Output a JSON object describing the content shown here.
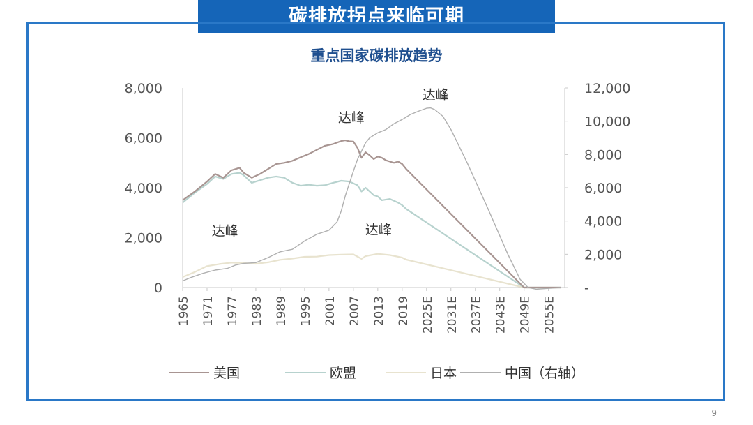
{
  "header": {
    "banner_title": "碳排放拐点来临可期",
    "page_number": "9"
  },
  "chart_data": {
    "type": "line",
    "title": "重点国家碳排放趋势",
    "left_axis": {
      "ticks": [
        "0",
        "2,000",
        "4,000",
        "6,000",
        "8,000"
      ],
      "min": 0,
      "max": 8000
    },
    "right_axis": {
      "ticks": [
        "-",
        "2,000",
        "4,000",
        "6,000",
        "8,000",
        "10,000",
        "12,000"
      ],
      "min": 0,
      "max": 12000
    },
    "x_ticks": [
      "1965",
      "1971",
      "1977",
      "1983",
      "1989",
      "1995",
      "2001",
      "2007",
      "2013",
      "2019",
      "2025E",
      "2031E",
      "2037E",
      "2043E",
      "2049E",
      "2055E"
    ],
    "x_range": [
      1965,
      2059
    ],
    "legend_position": "bottom",
    "colors": {
      "美国": "#a89592",
      "欧盟": "#b7d2ce",
      "日本": "#e8e3cf",
      "中国（右轴）": "#b0b0b0"
    },
    "series": [
      {
        "name": "美国",
        "axis": "left",
        "x": [
          1965,
          1968,
          1971,
          1973,
          1975,
          1977,
          1979,
          1980,
          1982,
          1984,
          1986,
          1988,
          1990,
          1992,
          1994,
          1996,
          1998,
          2000,
          2002,
          2004,
          2005,
          2006,
          2007,
          2008,
          2009,
          2010,
          2011,
          2012,
          2013,
          2014,
          2015,
          2016,
          2017,
          2018,
          2019,
          2020,
          2049,
          2052,
          2055,
          2058
        ],
        "y": [
          3500,
          3850,
          4250,
          4550,
          4400,
          4700,
          4800,
          4600,
          4400,
          4550,
          4750,
          4950,
          5000,
          5080,
          5220,
          5350,
          5520,
          5680,
          5750,
          5870,
          5900,
          5860,
          5850,
          5600,
          5200,
          5420,
          5300,
          5150,
          5250,
          5200,
          5100,
          5050,
          5000,
          5050,
          4950,
          4750,
          0,
          0,
          0,
          0
        ]
      },
      {
        "name": "欧盟",
        "axis": "left",
        "x": [
          1965,
          1968,
          1971,
          1973,
          1975,
          1977,
          1979,
          1980,
          1982,
          1984,
          1986,
          1988,
          1990,
          1992,
          1994,
          1996,
          1998,
          2000,
          2002,
          2004,
          2006,
          2008,
          2009,
          2010,
          2012,
          2013,
          2014,
          2016,
          2018,
          2019,
          2020,
          2049,
          2052,
          2055,
          2058
        ],
        "y": [
          3400,
          3800,
          4150,
          4450,
          4350,
          4550,
          4600,
          4500,
          4200,
          4300,
          4400,
          4450,
          4400,
          4200,
          4080,
          4120,
          4080,
          4100,
          4200,
          4280,
          4250,
          4100,
          3850,
          4000,
          3700,
          3650,
          3500,
          3550,
          3400,
          3300,
          3150,
          0,
          0,
          0,
          0
        ]
      },
      {
        "name": "日本",
        "axis": "left",
        "x": [
          1965,
          1968,
          1971,
          1974,
          1977,
          1980,
          1983,
          1986,
          1989,
          1992,
          1995,
          1998,
          2001,
          2004,
          2007,
          2009,
          2010,
          2013,
          2016,
          2019,
          2020,
          2049,
          2052,
          2055,
          2058
        ],
        "y": [
          420,
          620,
          860,
          940,
          1000,
          980,
          950,
          1010,
          1110,
          1160,
          1230,
          1240,
          1300,
          1320,
          1330,
          1150,
          1260,
          1350,
          1300,
          1200,
          1120,
          0,
          0,
          0,
          0
        ]
      },
      {
        "name": "中国（右轴）",
        "axis": "right",
        "x": [
          1965,
          1967,
          1970,
          1973,
          1976,
          1978,
          1980,
          1983,
          1986,
          1989,
          1992,
          1995,
          1998,
          2001,
          2003,
          2004,
          2005,
          2006,
          2007,
          2008,
          2009,
          2010,
          2011,
          2012,
          2013,
          2015,
          2017,
          2019,
          2021,
          2023,
          2025,
          2026,
          2027,
          2029,
          2031,
          2035,
          2040,
          2045,
          2048,
          2050,
          2052,
          2055,
          2058
        ],
        "y": [
          400,
          600,
          850,
          1050,
          1150,
          1350,
          1450,
          1500,
          1800,
          2150,
          2300,
          2800,
          3200,
          3450,
          3950,
          4600,
          5500,
          6250,
          7000,
          7700,
          8200,
          8700,
          9000,
          9150,
          9300,
          9500,
          9850,
          10100,
          10400,
          10600,
          10780,
          10800,
          10700,
          10300,
          9500,
          7500,
          4800,
          2000,
          500,
          0,
          -100,
          -50,
          0
        ]
      }
    ],
    "annotations": [
      {
        "text": "达峰",
        "series": "美国",
        "x": 2007
      },
      {
        "text": "达峰",
        "series": "欧盟",
        "x": 1979
      },
      {
        "text": "达峰",
        "series": "日本",
        "x": 2013
      },
      {
        "text": "达峰",
        "series": "中国（右轴）",
        "x": 2026
      }
    ]
  }
}
